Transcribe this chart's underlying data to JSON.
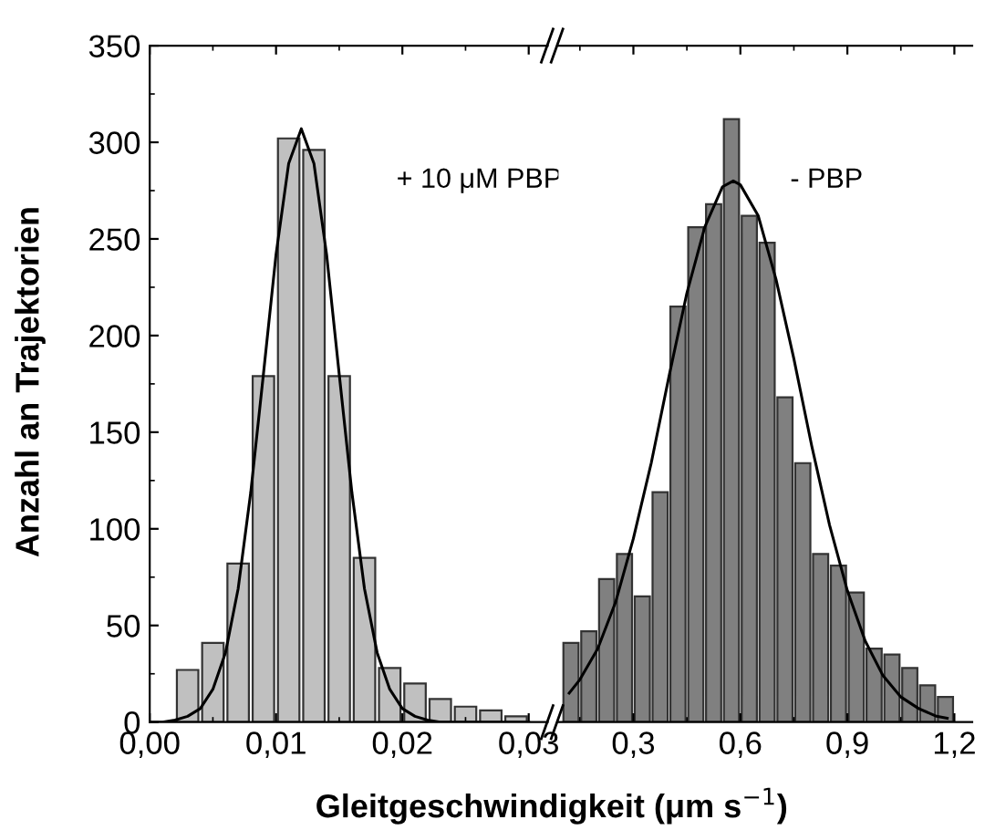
{
  "chart_data": [
    {
      "type": "histogram",
      "xlabel": "Gleitgeschwindigkeit (μm s$^{−1}$)",
      "ylabel": "Anzahl an Trajektorien",
      "annotations": [
        "+ 10 μM PBP"
      ],
      "bins": [
        0.002,
        0.004,
        0.006,
        0.008,
        0.01,
        0.012,
        0.014,
        0.016,
        0.018,
        0.02,
        0.022,
        0.024,
        0.026,
        0.028,
        0.03
      ],
      "values": [
        27,
        41,
        82,
        179,
        302,
        296,
        179,
        85,
        28,
        20,
        12,
        8,
        6,
        3
      ],
      "color": "#c0c0c0",
      "series": [
        {
          "type": "line",
          "color": "#000000",
          "x": [
            0.0,
            0.001,
            0.002,
            0.003,
            0.004,
            0.005,
            0.006,
            0.007,
            0.008,
            0.009,
            0.01,
            0.011,
            0.012,
            0.013,
            0.014,
            0.015,
            0.016,
            0.017,
            0.018,
            0.019,
            0.02,
            0.021,
            0.022,
            0.023,
            0.024,
            0.026,
            0.028,
            0.03
          ],
          "values": [
            0,
            0,
            1,
            3,
            7,
            17,
            36,
            69,
            119,
            180,
            242,
            289,
            307,
            289,
            242,
            180,
            119,
            69,
            36,
            17,
            7,
            3,
            1,
            0,
            0,
            0,
            0,
            0
          ]
        }
      ],
      "xlim": [
        0,
        0.0315
      ],
      "xticks": [
        {
          "value": 0,
          "label": "0,00"
        },
        {
          "value": 0.01,
          "label": "0,01"
        },
        {
          "value": 0.02,
          "label": "0,02"
        },
        {
          "value": 0.03,
          "label": "0,03"
        }
      ],
      "ylim": [
        0,
        350
      ],
      "yticks": [
        0,
        50,
        100,
        150,
        200,
        250,
        300,
        350
      ]
    },
    {
      "type": "histogram",
      "annotations": [
        "- PBP"
      ],
      "bins": [
        0.1,
        0.15,
        0.2,
        0.25,
        0.3,
        0.35,
        0.4,
        0.45,
        0.5,
        0.55,
        0.6,
        0.65,
        0.7,
        0.75,
        0.8,
        0.85,
        0.9,
        0.95,
        1.0,
        1.05,
        1.1,
        1.15,
        1.2
      ],
      "values": [
        41,
        47,
        74,
        87,
        65,
        119,
        215,
        256,
        268,
        312,
        262,
        248,
        168,
        134,
        87,
        81,
        67,
        38,
        35,
        28,
        19,
        13
      ],
      "color": "#808080",
      "series": [
        {
          "type": "line",
          "color": "#000000",
          "x": [
            0.12,
            0.15,
            0.2,
            0.25,
            0.3,
            0.35,
            0.4,
            0.45,
            0.5,
            0.55,
            0.58,
            0.6,
            0.65,
            0.7,
            0.75,
            0.8,
            0.85,
            0.9,
            0.95,
            1.0,
            1.05,
            1.1,
            1.15,
            1.18
          ],
          "values": [
            15,
            22,
            38,
            62,
            95,
            134,
            179,
            222,
            256,
            277,
            280,
            278,
            262,
            229,
            188,
            143,
            102,
            68,
            42,
            24,
            13,
            7,
            3,
            2
          ]
        }
      ],
      "xlim": [
        0.09,
        1.25
      ],
      "xticks": [
        {
          "value": 0.3,
          "label": "0,3"
        },
        {
          "value": 0.6,
          "label": "0,6"
        },
        {
          "value": 0.9,
          "label": "0,9"
        },
        {
          "value": 1.2,
          "label": "1,2"
        }
      ],
      "ylim": [
        0,
        350
      ],
      "yticks": [
        0,
        50,
        100,
        150,
        200,
        250,
        300,
        350
      ],
      "tick_labels": "x"
    }
  ]
}
